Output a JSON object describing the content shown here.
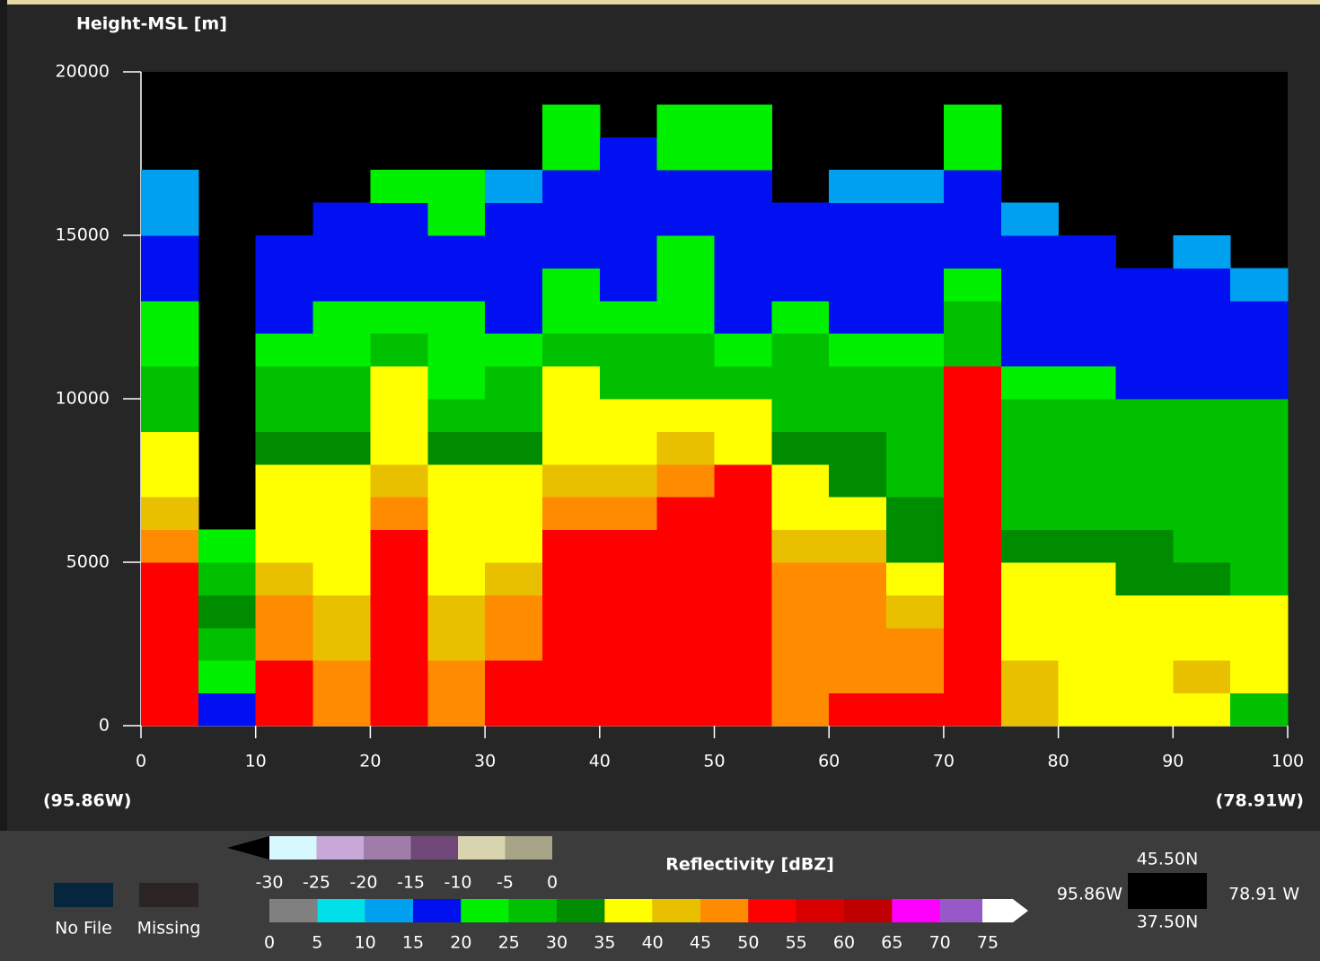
{
  "chart_data": {
    "type": "heatmap",
    "y_label": "Height-MSL  [m]",
    "xlim": [
      0,
      100
    ],
    "xticks": [
      0,
      10,
      20,
      30,
      40,
      50,
      60,
      70,
      80,
      90,
      100
    ],
    "ylim": [
      0,
      20000
    ],
    "yticks": [
      0,
      5000,
      10000,
      15000,
      20000
    ],
    "start_label": "(95.86W)",
    "end_label": "(78.91W)",
    "x_edges": [
      0,
      5,
      10,
      15,
      20,
      25,
      30,
      35,
      40,
      45,
      50,
      55,
      60,
      65,
      70,
      75,
      80,
      85,
      90,
      95,
      100
    ],
    "y_edges": [
      0,
      1000,
      2000,
      3000,
      4000,
      5000,
      6000,
      7000,
      8000,
      9000,
      10000,
      11000,
      12000,
      13000,
      14000,
      15000,
      16000,
      17000,
      18000,
      19000
    ],
    "z": [
      [
        52,
        52,
        52,
        52,
        52,
        47,
        42,
        37,
        37,
        27,
        27,
        22,
        22,
        17,
        17,
        12,
        12,
        null,
        null
      ],
      [
        17,
        22,
        27,
        32,
        27,
        22,
        null,
        null,
        null,
        null,
        null,
        null,
        null,
        null,
        null,
        null,
        null,
        null,
        null
      ],
      [
        52,
        52,
        47,
        47,
        42,
        37,
        37,
        37,
        32,
        27,
        27,
        22,
        17,
        17,
        17,
        null,
        null,
        null,
        null
      ],
      [
        47,
        47,
        42,
        42,
        37,
        37,
        37,
        37,
        32,
        27,
        27,
        22,
        22,
        17,
        17,
        17,
        null,
        null,
        null
      ],
      [
        52,
        52,
        52,
        52,
        52,
        52,
        47,
        42,
        37,
        37,
        37,
        27,
        22,
        17,
        17,
        17,
        22,
        null,
        null
      ],
      [
        47,
        47,
        42,
        42,
        37,
        37,
        37,
        37,
        32,
        27,
        22,
        22,
        22,
        17,
        17,
        22,
        22,
        null,
        null
      ],
      [
        52,
        52,
        47,
        47,
        42,
        37,
        37,
        37,
        32,
        27,
        27,
        22,
        17,
        17,
        17,
        17,
        12,
        null,
        null
      ],
      [
        52,
        52,
        52,
        52,
        52,
        52,
        47,
        42,
        37,
        37,
        37,
        27,
        22,
        22,
        17,
        17,
        17,
        22,
        22
      ],
      [
        52,
        52,
        52,
        52,
        52,
        52,
        47,
        42,
        37,
        37,
        27,
        27,
        22,
        17,
        17,
        17,
        17,
        17,
        null
      ],
      [
        52,
        52,
        52,
        52,
        52,
        52,
        52,
        47,
        42,
        37,
        27,
        27,
        22,
        22,
        22,
        17,
        17,
        22,
        22
      ],
      [
        52,
        52,
        52,
        52,
        52,
        52,
        52,
        52,
        37,
        37,
        27,
        22,
        17,
        17,
        17,
        17,
        17,
        22,
        22
      ],
      [
        47,
        47,
        47,
        47,
        47,
        42,
        37,
        37,
        32,
        27,
        27,
        27,
        22,
        17,
        17,
        17,
        null,
        null,
        null
      ],
      [
        52,
        47,
        47,
        47,
        47,
        42,
        37,
        32,
        32,
        27,
        27,
        22,
        17,
        17,
        17,
        17,
        12,
        null,
        null
      ],
      [
        52,
        47,
        47,
        42,
        37,
        32,
        32,
        27,
        27,
        27,
        27,
        22,
        17,
        17,
        17,
        17,
        12,
        null,
        null
      ],
      [
        52,
        52,
        52,
        52,
        52,
        52,
        52,
        52,
        52,
        52,
        52,
        27,
        27,
        22,
        17,
        17,
        17,
        22,
        22
      ],
      [
        42,
        42,
        37,
        37,
        37,
        32,
        27,
        27,
        27,
        27,
        22,
        17,
        17,
        17,
        17,
        12,
        null,
        null,
        null
      ],
      [
        37,
        37,
        37,
        37,
        37,
        32,
        27,
        27,
        27,
        27,
        22,
        17,
        17,
        17,
        17,
        null,
        null,
        null,
        null
      ],
      [
        37,
        37,
        37,
        37,
        32,
        32,
        27,
        27,
        27,
        27,
        17,
        17,
        17,
        17,
        null,
        null,
        null,
        null,
        null
      ],
      [
        37,
        42,
        37,
        37,
        32,
        27,
        27,
        27,
        27,
        27,
        17,
        17,
        17,
        17,
        12,
        null,
        null,
        null,
        null
      ],
      [
        27,
        37,
        37,
        37,
        27,
        27,
        27,
        27,
        27,
        27,
        17,
        17,
        17,
        12,
        null,
        null,
        null,
        null,
        null
      ]
    ],
    "colorbar": {
      "title": "Reflectivity [dBZ]",
      "low": {
        "ticks": [
          -30,
          -25,
          -20,
          -15,
          -10,
          -5,
          0
        ],
        "under_color": "#000000",
        "colors": [
          "#d8f8ff",
          "#c8a8d8",
          "#a07ca8",
          "#704878",
          "#d8d4b0",
          "#a8a488"
        ]
      },
      "high": {
        "ticks": [
          0,
          5,
          10,
          15,
          20,
          25,
          30,
          35,
          40,
          45,
          50,
          55,
          60,
          65,
          70,
          75
        ],
        "over_color": "#ffffff",
        "colors": [
          "#808080",
          "#00e0e8",
          "#00a0f0",
          "#0010f0",
          "#00f000",
          "#00c000",
          "#008c00",
          "#ffff00",
          "#e8c000",
          "#ff8c00",
          "#ff0000",
          "#d80000",
          "#c00000",
          "#ff00ff",
          "#9858c8"
        ]
      }
    },
    "status_legend": [
      {
        "label": "No File",
        "color": "#06263e"
      },
      {
        "label": "Missing",
        "color": "#2a2422"
      }
    ],
    "location": {
      "north": "45.50N",
      "south": "37.50N",
      "west": "95.86W",
      "east": "78.91 W",
      "color": "#000000"
    }
  }
}
